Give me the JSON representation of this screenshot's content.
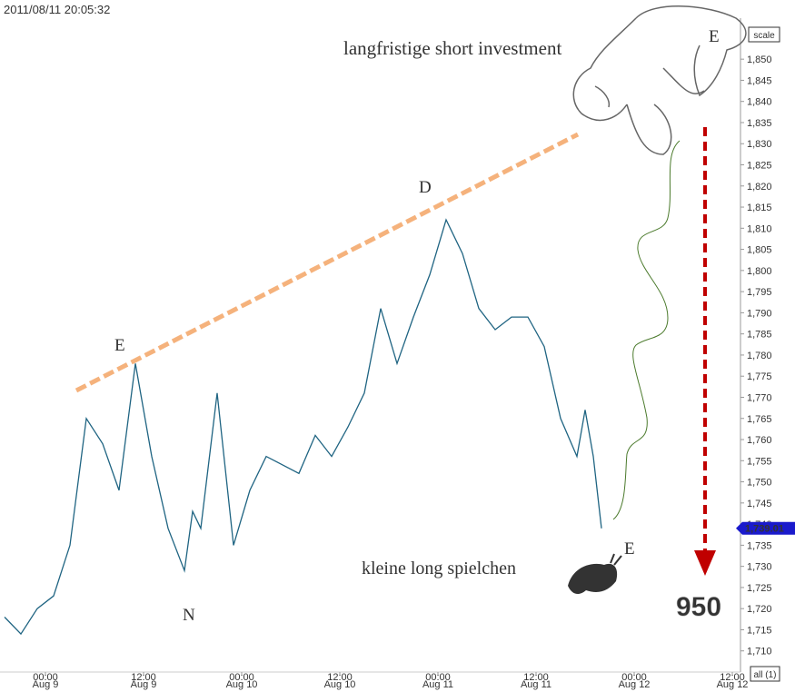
{
  "header": {
    "timestamp": "2011/08/11 20:05:32"
  },
  "controls": {
    "scale": "scale",
    "all": "all (1)"
  },
  "chart_data": {
    "type": "line",
    "color": "#1f6482",
    "x": [
      "Aug 8 19:00",
      "Aug 8 21:00",
      "Aug 8 23:00",
      "Aug 9 01:00",
      "Aug 9 03:00",
      "Aug 9 05:00",
      "Aug 9 07:00",
      "Aug 9 09:00",
      "Aug 9 10:00",
      "Aug 9 11:00",
      "Aug 9 13:00",
      "Aug 9 15:00",
      "Aug 9 17:00",
      "Aug 9 18:00",
      "Aug 9 19:00",
      "Aug 9 21:00",
      "Aug 9 23:00",
      "Aug 10 01:00",
      "Aug 10 03:00",
      "Aug 10 05:00",
      "Aug 10 07:00",
      "Aug 10 09:00",
      "Aug 10 11:00",
      "Aug 10 13:00",
      "Aug 10 15:00",
      "Aug 10 17:00",
      "Aug 10 19:00",
      "Aug 10 21:00",
      "Aug 10 23:00",
      "Aug 11 01:00",
      "Aug 11 03:00",
      "Aug 11 05:00",
      "Aug 11 07:00",
      "Aug 11 09:00",
      "Aug 11 11:00",
      "Aug 11 13:00",
      "Aug 11 15:00",
      "Aug 11 17:00",
      "Aug 11 18:00",
      "Aug 11 19:00",
      "Aug 11 20:00"
    ],
    "values": [
      1718,
      1714,
      1720,
      1723,
      1735,
      1765,
      1759,
      1748,
      1763,
      1778,
      1756,
      1739,
      1729,
      1743,
      1739,
      1771,
      1735,
      1748,
      1756,
      1754,
      1752,
      1761,
      1756,
      1763,
      1771,
      1791,
      1778,
      1789,
      1799,
      1812,
      1804,
      1791,
      1786,
      1789,
      1789,
      1782,
      1765,
      1756,
      1767,
      1756,
      1739
    ],
    "xlim": [
      "Aug 8 18:00",
      "Aug 12 14:00"
    ],
    "xticks": [
      {
        "value": "Aug 9 00:00",
        "label": [
          "00:00",
          "Aug 9"
        ]
      },
      {
        "value": "Aug 9 12:00",
        "label": [
          "12:00",
          "Aug 9"
        ]
      },
      {
        "value": "Aug 10 00:00",
        "label": [
          "00:00",
          "Aug 10"
        ]
      },
      {
        "value": "Aug 10 12:00",
        "label": [
          "12:00",
          "Aug 10"
        ]
      },
      {
        "value": "Aug 11 00:00",
        "label": [
          "00:00",
          "Aug 11"
        ]
      },
      {
        "value": "Aug 11 12:00",
        "label": [
          "12:00",
          "Aug 11"
        ]
      },
      {
        "value": "Aug 12 00:00",
        "label": [
          "00:00",
          "Aug 12"
        ]
      },
      {
        "value": "Aug 12 12:00",
        "label": [
          "12:00",
          "Aug 12"
        ]
      }
    ],
    "ylim": [
      1705,
      1864
    ],
    "yticks": [
      {
        "value": 1710,
        "label": "1,710"
      },
      {
        "value": 1715,
        "label": "1,715"
      },
      {
        "value": 1720,
        "label": "1,720"
      },
      {
        "value": 1725,
        "label": "1,725"
      },
      {
        "value": 1730,
        "label": "1,730"
      },
      {
        "value": 1735,
        "label": "1,735"
      },
      {
        "value": 1740,
        "label": "1,740"
      },
      {
        "value": 1745,
        "label": "1,745"
      },
      {
        "value": 1750,
        "label": "1,750"
      },
      {
        "value": 1755,
        "label": "1,755"
      },
      {
        "value": 1760,
        "label": "1,760"
      },
      {
        "value": 1765,
        "label": "1,765"
      },
      {
        "value": 1770,
        "label": "1,770"
      },
      {
        "value": 1775,
        "label": "1,775"
      },
      {
        "value": 1780,
        "label": "1,780"
      },
      {
        "value": 1785,
        "label": "1,785"
      },
      {
        "value": 1790,
        "label": "1,790"
      },
      {
        "value": 1795,
        "label": "1,795"
      },
      {
        "value": 1800,
        "label": "1,800"
      },
      {
        "value": 1805,
        "label": "1,805"
      },
      {
        "value": 1810,
        "label": "1,810"
      },
      {
        "value": 1815,
        "label": "1,815"
      },
      {
        "value": 1820,
        "label": "1,820"
      },
      {
        "value": 1825,
        "label": "1,825"
      },
      {
        "value": 1830,
        "label": "1,830"
      },
      {
        "value": 1835,
        "label": "1,835"
      },
      {
        "value": 1840,
        "label": "1,840"
      },
      {
        "value": 1845,
        "label": "1,845"
      },
      {
        "value": 1850,
        "label": "1,850"
      }
    ],
    "last_price": {
      "value": 1739.01,
      "label": "1,739.01"
    },
    "annotations": [
      "langfristige short investment",
      "kleine long spielchen",
      "E",
      "D",
      "E",
      "N",
      "E",
      "950"
    ]
  }
}
